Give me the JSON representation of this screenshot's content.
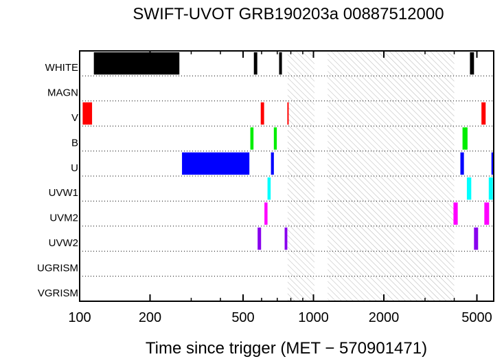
{
  "chart_data": {
    "type": "bar",
    "title": "SWIFT-UVOT GRB190203a 00887512000",
    "xlabel": "Time since trigger (MET − 570901471)",
    "ylabel": "",
    "x_scale": "log",
    "xlim": [
      100,
      5900
    ],
    "x_ticks": [
      100,
      200,
      500,
      1000,
      2000,
      5000
    ],
    "x_tick_labels": [
      "100",
      "200",
      "500",
      "1000",
      "2000",
      "5000"
    ],
    "grid": "dotted row separators",
    "categories": [
      "WHITE",
      "MAGN",
      "V",
      "B",
      "U",
      "UVW1",
      "UVM2",
      "UVW2",
      "UGRISM",
      "VGRISM"
    ],
    "colors": {
      "WHITE": "#000000",
      "V": "#ff0000",
      "B": "#00ee00",
      "U": "#0000ff",
      "UVW1": "#00ffff",
      "UVM2": "#ff00ff",
      "UVW2": "#8800ee"
    },
    "hatched_intervals": [
      [
        775,
        1010
      ],
      [
        1150,
        4000
      ]
    ],
    "exposures": [
      {
        "filter": "WHITE",
        "start": 115,
        "end": 267
      },
      {
        "filter": "WHITE",
        "start": 556,
        "end": 575
      },
      {
        "filter": "WHITE",
        "start": 713,
        "end": 733
      },
      {
        "filter": "WHITE",
        "start": 4670,
        "end": 4860
      },
      {
        "filter": "V",
        "start": 103,
        "end": 113
      },
      {
        "filter": "V",
        "start": 595,
        "end": 615
      },
      {
        "filter": "V",
        "start": 773,
        "end": 783
      },
      {
        "filter": "V",
        "start": 5230,
        "end": 5450
      },
      {
        "filter": "B",
        "start": 537,
        "end": 554
      },
      {
        "filter": "B",
        "start": 677,
        "end": 697
      },
      {
        "filter": "B",
        "start": 4340,
        "end": 4560
      },
      {
        "filter": "U",
        "start": 274,
        "end": 532
      },
      {
        "filter": "U",
        "start": 658,
        "end": 677
      },
      {
        "filter": "U",
        "start": 4250,
        "end": 4400
      },
      {
        "filter": "U",
        "start": 5770,
        "end": 5900
      },
      {
        "filter": "UVW1",
        "start": 636,
        "end": 656
      },
      {
        "filter": "UVW1",
        "start": 4530,
        "end": 4730
      },
      {
        "filter": "UVW1",
        "start": 5620,
        "end": 5850
      },
      {
        "filter": "UVM2",
        "start": 617,
        "end": 636
      },
      {
        "filter": "UVM2",
        "start": 3970,
        "end": 4140
      },
      {
        "filter": "UVM2",
        "start": 5380,
        "end": 5640
      },
      {
        "filter": "UVW2",
        "start": 577,
        "end": 597
      },
      {
        "filter": "UVW2",
        "start": 753,
        "end": 773
      },
      {
        "filter": "UVW2",
        "start": 4860,
        "end": 5060
      }
    ]
  }
}
